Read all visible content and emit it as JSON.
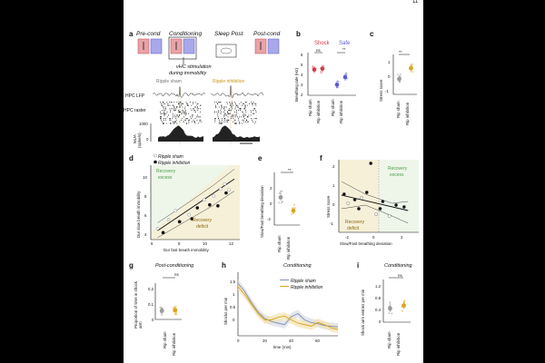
{
  "page_number": "11",
  "a": {
    "label": "a",
    "phases": [
      "Pre-cond",
      "Conditioning",
      "Sleep Post",
      "Post-cond"
    ],
    "stim_note_1": "vHC stimulation",
    "stim_note_2": "during immobility",
    "cond_sham": "Ripple sham",
    "cond_inhib": "Ripple inhibition",
    "row_lfp": "HPC LFP",
    "row_raster": "HPC raster",
    "mua_label": "MUA",
    "mua_unit": "(spike/s)",
    "mua_tick_hi": "1000",
    "mua_tick_lo": "0",
    "scalebar": "100 ms"
  },
  "b": {
    "label": "b",
    "ylabel": "Breathing rate (Hz)",
    "ticks": [
      "6",
      "5",
      "4",
      "3",
      "2"
    ],
    "group_shock": "Shock",
    "group_safe": "Safe",
    "sig_left": "ns",
    "sig_right": "**",
    "xticks": [
      "Rip sham",
      "Rip inhibition",
      "Rip sham",
      "Rip inhibition"
    ]
  },
  "c": {
    "label": "c",
    "ylabel": "Stress score",
    "ticks": [
      "1",
      "0",
      "-1"
    ],
    "sig": "**",
    "xticks": [
      "Rip sham",
      "Rip inhibition"
    ]
  },
  "d": {
    "label": "d",
    "legend": [
      "Ripple sham",
      "Ripple inhibition"
    ],
    "region_top_1": "Recovery",
    "region_top_2": "excess",
    "region_bot_1": "Recovery",
    "region_bot_2": "deficit",
    "ylabel": "Dur slow breath immobility",
    "xlabel": "Dur fast breath immobility",
    "yticks": [
      "10",
      "8",
      "6",
      "4"
    ],
    "xticks": [
      "6",
      "8",
      "10",
      "12"
    ]
  },
  "e": {
    "label": "e",
    "sig": "**",
    "ylabel": "Slow/Fast breathing deviation",
    "ticks": [
      "2",
      "0",
      "-2"
    ],
    "xticks": [
      "Rip sham",
      "Rip inhibition"
    ]
  },
  "f": {
    "label": "f",
    "region_top_1": "Recovery",
    "region_top_2": "excess",
    "region_bot_1": "Recovery",
    "region_bot_2": "deficit",
    "ylabel": "Stress score",
    "xlabel": "Slow/Fast breathing deviation",
    "yticks": [
      "2",
      "1",
      "0",
      "-1"
    ],
    "xticks": [
      "-2",
      "0",
      "2"
    ]
  },
  "g": {
    "label": "g",
    "title": "Post-conditioning",
    "sig": "ns",
    "ylabel": "Proportion of time in shock arm",
    "ticks": [
      "0.2",
      "0.1",
      "0"
    ],
    "xticks": [
      "Rip sham",
      "Rip inhibition"
    ]
  },
  "h": {
    "label": "h",
    "title": "Conditioning",
    "legend": [
      "Ripple sham",
      "Ripple inhibition"
    ],
    "ylabel": "Shocks per min",
    "xlabel": "time (min)",
    "yticks": [
      "1.5",
      "1",
      "0.5",
      "0"
    ],
    "xticks": [
      "0",
      "20",
      "40",
      "60"
    ]
  },
  "i": {
    "label": "i",
    "title": "Conditioning",
    "sig": "ns",
    "ylabel": "Shock arm entries per min",
    "ticks": [
      "1.2",
      "0.8",
      "0.4",
      "0"
    ],
    "xticks": [
      "Rip sham",
      "Rip inhibition"
    ]
  },
  "colors": {
    "shock": "#d33a4a",
    "safe": "#5a5ad8",
    "shock_light": "#e9a3a8",
    "safe_light": "#a8a8ea",
    "inhibition": "#d9a520",
    "sham": "#9a9a9a",
    "deficit_bg": "#f6f0d8",
    "excess_bg": "#eef6ea",
    "excess_text": "#4f9a4a",
    "deficit_text": "#8a6a10"
  },
  "chart_data": [
    {
      "panel": "b",
      "type": "scatter",
      "ylabel": "Breathing rate (Hz)",
      "ylim": [
        2,
        6
      ],
      "categories": [
        "Rip sham",
        "Rip inhibition",
        "Rip sham",
        "Rip inhibition"
      ],
      "series": [
        {
          "values": [
            4.4,
            4.5,
            3.0,
            3.7
          ]
        },
        {
          "values": [
            3.9,
            4.6,
            2.4,
            3.4
          ]
        }
      ]
    },
    {
      "panel": "c",
      "type": "scatter",
      "ylabel": "Stress score",
      "ylim": [
        -1.3,
        1.3
      ],
      "categories": [
        "Rip sham",
        "Rip inhibition"
      ],
      "means": [
        -0.3,
        0.4
      ]
    },
    {
      "panel": "d",
      "type": "scatter",
      "xlabel": "Dur fast breath immobility",
      "ylabel": "Dur slow breath immobility",
      "xlim": [
        5.5,
        12
      ],
      "ylim": [
        3.5,
        11
      ],
      "series": [
        {
          "name": "Ripple sham",
          "points": [
            [
              6,
              4.6
            ],
            [
              6.8,
              5.5
            ],
            [
              7.3,
              6.4
            ],
            [
              8.3,
              6.0
            ],
            [
              9.4,
              7.5
            ],
            [
              10.1,
              7.9
            ],
            [
              10.6,
              8.6
            ],
            [
              10.9,
              9.1
            ],
            [
              11.2,
              8.5
            ]
          ]
        },
        {
          "name": "Ripple inhibition",
          "points": [
            [
              6.4,
              4.2
            ],
            [
              7.6,
              5.3
            ],
            [
              8.5,
              5.6
            ],
            [
              8.9,
              6.7
            ],
            [
              9.8,
              7.0
            ],
            [
              10.4,
              6.9
            ],
            [
              11.0,
              8.2
            ]
          ]
        }
      ]
    },
    {
      "panel": "e",
      "type": "scatter",
      "ylabel": "Slow/Fast breathing deviation",
      "ylim": [
        -3,
        2.5
      ],
      "categories": [
        "Rip sham",
        "Rip inhibition"
      ],
      "means": [
        -0.1,
        -1.5
      ]
    },
    {
      "panel": "f",
      "type": "scatter",
      "xlabel": "Slow/Fast breathing deviation",
      "ylabel": "Stress score",
      "xlim": [
        -3,
        3
      ],
      "ylim": [
        -1.5,
        2.5
      ],
      "points": [
        [
          -2.6,
          0.6
        ],
        [
          -2.3,
          0.1
        ],
        [
          -1.8,
          0.3
        ],
        [
          -1.5,
          -0.2
        ],
        [
          -1.3,
          0.4
        ],
        [
          -0.9,
          0.7
        ],
        [
          -0.6,
          2.3
        ],
        [
          -0.2,
          -0.5
        ],
        [
          0.1,
          -0.2
        ],
        [
          0.3,
          0.2
        ],
        [
          0.8,
          -0.6
        ],
        [
          1.3,
          0.0
        ],
        [
          1.9,
          -0.1
        ]
      ]
    },
    {
      "panel": "g",
      "type": "scatter",
      "ylabel": "Proportion of time in shock arm",
      "ylim": [
        0,
        0.25
      ],
      "categories": [
        "Rip sham",
        "Rip inhibition"
      ],
      "means": [
        0.06,
        0.065
      ]
    },
    {
      "panel": "h",
      "type": "line",
      "xlabel": "time (min)",
      "ylabel": "Shocks per min",
      "xlim": [
        0,
        75
      ],
      "ylim": [
        0,
        2
      ],
      "x": [
        0,
        5,
        10,
        15,
        20,
        25,
        30,
        35,
        40,
        45,
        50,
        55,
        60,
        65,
        70,
        75
      ],
      "series": [
        {
          "name": "Ripple sham",
          "values": [
            1.65,
            1.4,
            1.05,
            0.75,
            0.55,
            0.45,
            0.4,
            0.35,
            0.6,
            0.7,
            0.5,
            0.42,
            0.38,
            0.32,
            0.3,
            0.28
          ]
        },
        {
          "name": "Ripple inhibition",
          "values": [
            1.55,
            1.3,
            1.0,
            0.7,
            0.5,
            0.5,
            0.58,
            0.62,
            0.5,
            0.4,
            0.35,
            0.3,
            0.42,
            0.35,
            0.25,
            0.2
          ]
        }
      ]
    },
    {
      "panel": "i",
      "type": "scatter",
      "ylabel": "Shock arm entries per min",
      "ylim": [
        0,
        1.4
      ],
      "categories": [
        "Rip sham",
        "Rip inhibition"
      ],
      "means": [
        0.45,
        0.55
      ]
    }
  ]
}
